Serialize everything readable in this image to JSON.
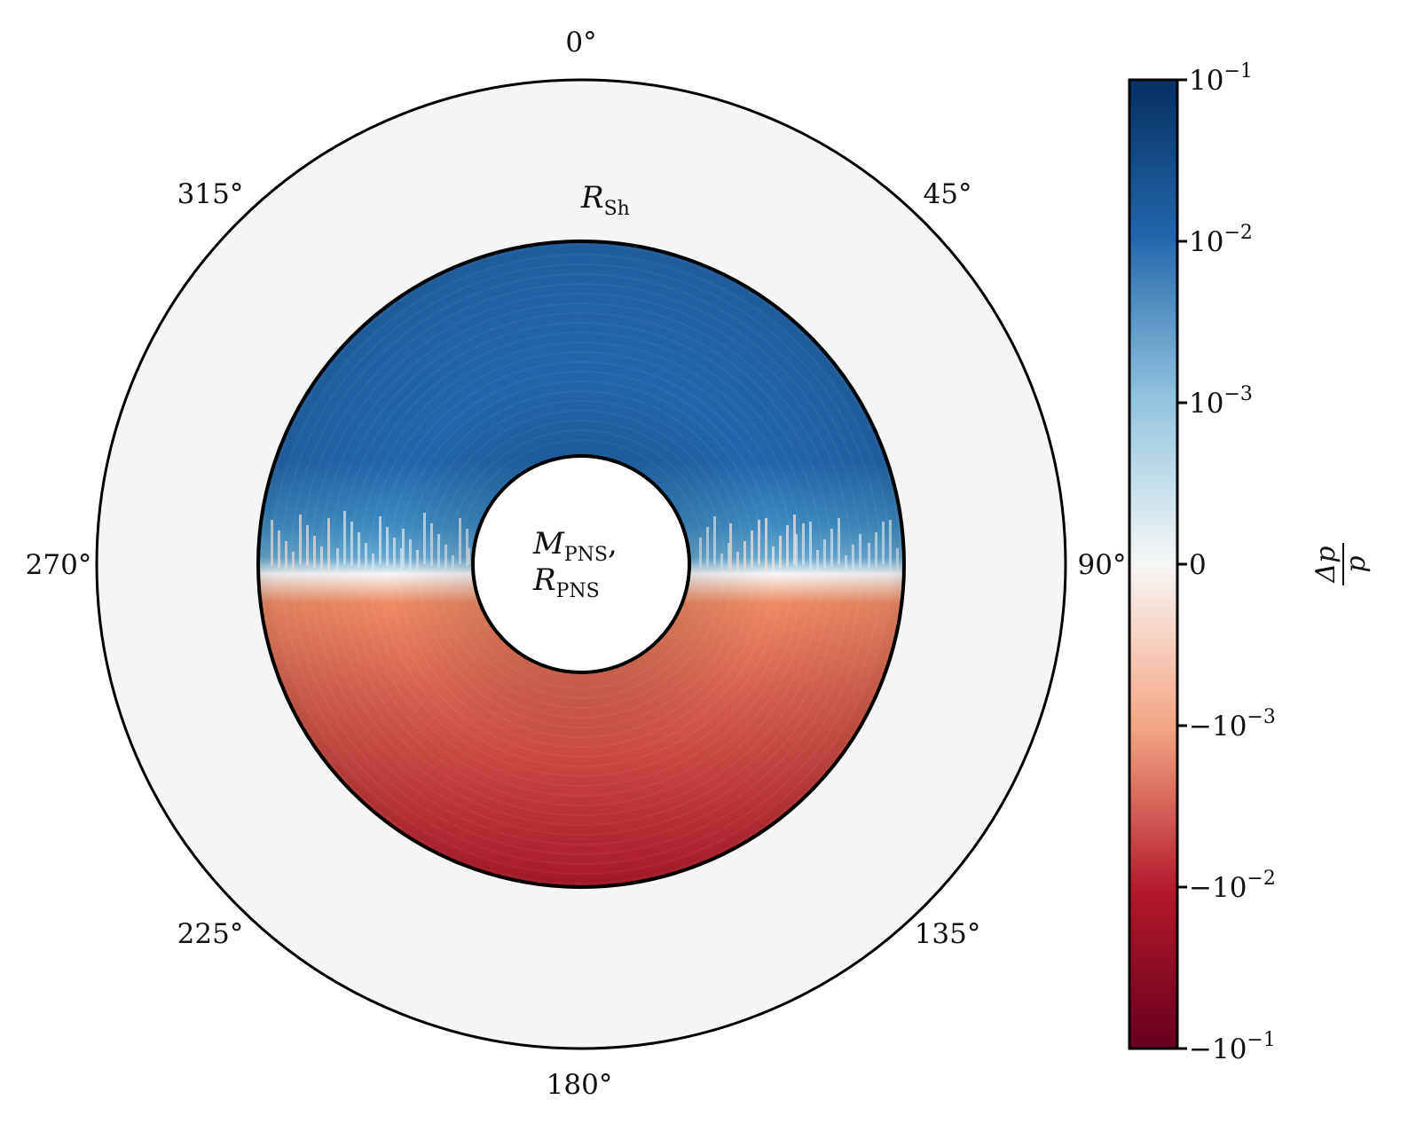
{
  "chart_data": {
    "type": "heatmap",
    "projection": "polar",
    "title": "",
    "angle_ticks": [
      "0°",
      "45°",
      "90°",
      "135°",
      "180°",
      "225°",
      "270°",
      "315°"
    ],
    "annotations": {
      "shock": {
        "symbol": "R",
        "subscript": "Sh"
      },
      "pns_mass": {
        "symbol": "M",
        "subscript": "PNS",
        "suffix": ","
      },
      "pns_radius": {
        "symbol": "R",
        "subscript": "PNS"
      }
    },
    "field": {
      "description_of_pattern": "positive in northern hemisphere, negative in southern hemisphere",
      "north_value": 0.02,
      "south_value": -0.02,
      "equator_value": 0
    },
    "colorbar": {
      "label_numerator": "Δp",
      "label_denominator": "p",
      "scale": "symlog",
      "colormap": "RdBu",
      "range": [
        -0.1,
        0.1
      ],
      "ticks": [
        {
          "value": 0.1,
          "base": "10",
          "exp": "−1",
          "sign": ""
        },
        {
          "value": 0.01,
          "base": "10",
          "exp": "−2",
          "sign": ""
        },
        {
          "value": 0.001,
          "base": "10",
          "exp": "−3",
          "sign": ""
        },
        {
          "value": 0,
          "base": "0",
          "exp": "",
          "sign": ""
        },
        {
          "value": -0.001,
          "base": "10",
          "exp": "−3",
          "sign": "−"
        },
        {
          "value": -0.01,
          "base": "10",
          "exp": "−2",
          "sign": "−"
        },
        {
          "value": -0.1,
          "base": "10",
          "exp": "−1",
          "sign": "−"
        }
      ]
    },
    "colors": {
      "outer_region": "#f4f6f6",
      "deep_red": "#67001f",
      "red": "#b2182b",
      "light_red": "#ef8a62",
      "neutral": "#f7f7f7",
      "light_blue": "#67a9cf",
      "blue": "#2166ac",
      "deep_blue": "#053061"
    }
  }
}
